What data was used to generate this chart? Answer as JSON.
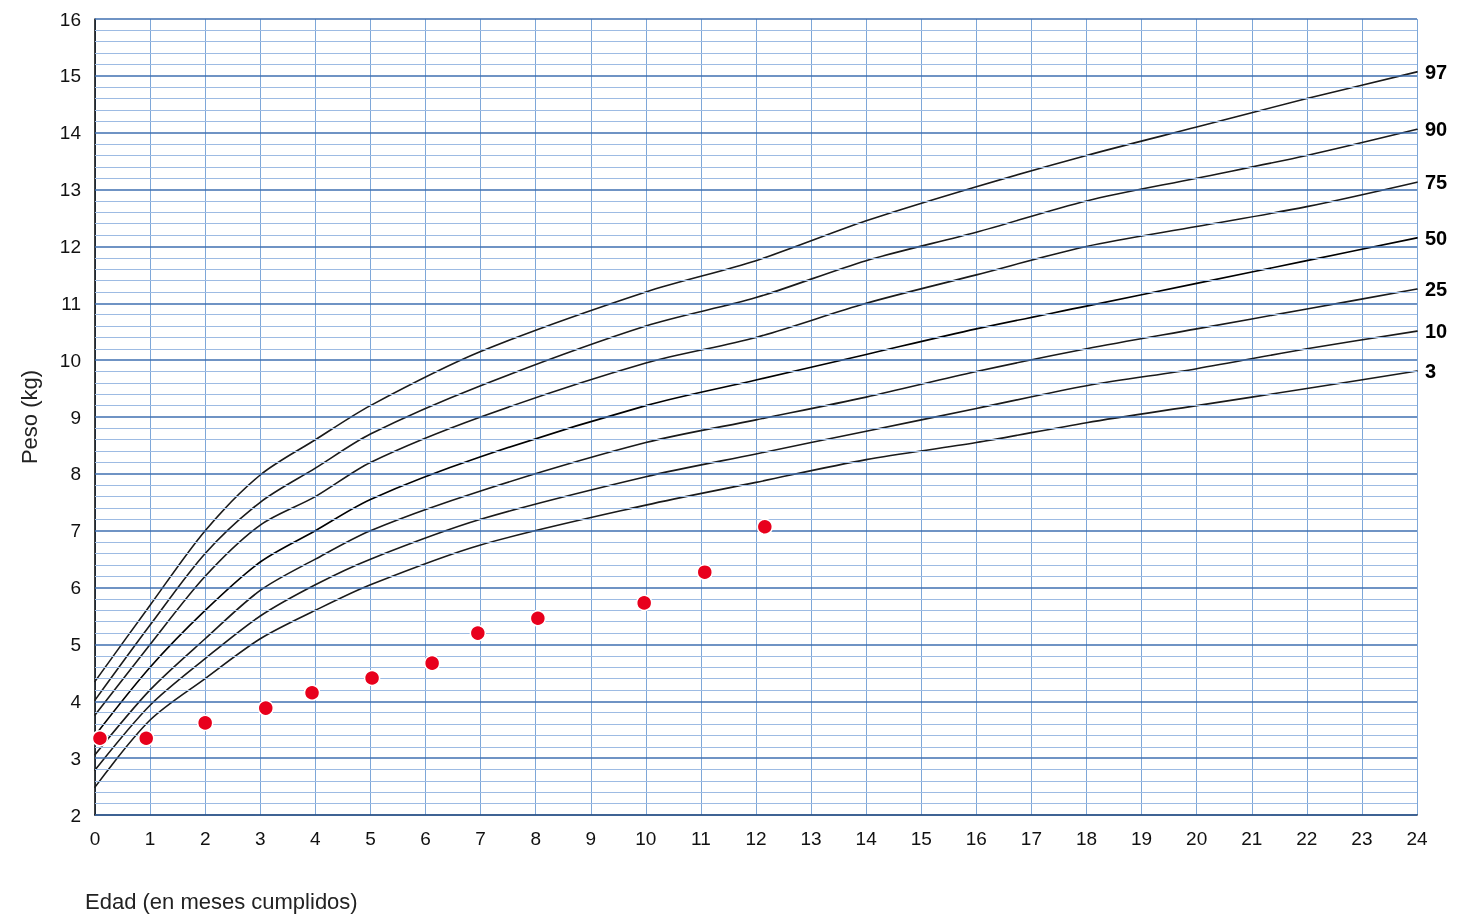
{
  "chart_data": {
    "type": "line",
    "xlabel": "Edad (en meses cumplidos)",
    "ylabel": "Peso (kg)",
    "xlim": [
      0,
      24
    ],
    "ylim": [
      2,
      16
    ],
    "xticks": [
      0,
      1,
      2,
      3,
      4,
      5,
      6,
      7,
      8,
      9,
      10,
      11,
      12,
      13,
      14,
      15,
      16,
      17,
      18,
      19,
      20,
      21,
      22,
      23,
      24
    ],
    "yticks": [
      2,
      {
        "value": 2.2,
        "label": null
      },
      {
        "value": 2.4,
        "label": null
      },
      {
        "value": 2.6,
        "label": null
      },
      {
        "value": 2.8,
        "label": null
      },
      3,
      {
        "value": 3.2,
        "label": null
      },
      {
        "value": 3.4,
        "label": null
      },
      {
        "value": 3.6,
        "label": null
      },
      {
        "value": 3.8,
        "label": null
      },
      4,
      {
        "value": 4.2,
        "label": null
      },
      {
        "value": 4.4,
        "label": null
      },
      {
        "value": 4.6,
        "label": null
      },
      {
        "value": 4.8,
        "label": null
      },
      5,
      {
        "value": 5.2,
        "label": null
      },
      {
        "value": 5.4,
        "label": null
      },
      {
        "value": 5.6,
        "label": null
      },
      {
        "value": 5.8,
        "label": null
      },
      6,
      {
        "value": 6.2,
        "label": null
      },
      {
        "value": 6.4,
        "label": null
      },
      {
        "value": 6.6,
        "label": null
      },
      {
        "value": 6.8,
        "label": null
      },
      7,
      {
        "value": 7.2,
        "label": null
      },
      {
        "value": 7.4,
        "label": null
      },
      {
        "value": 7.6,
        "label": null
      },
      {
        "value": 7.8,
        "label": null
      },
      8,
      {
        "value": 8.2,
        "label": null
      },
      {
        "value": 8.4,
        "label": null
      },
      {
        "value": 8.6,
        "label": null
      },
      {
        "value": 8.8,
        "label": null
      },
      9,
      {
        "value": 9.2,
        "label": null
      },
      {
        "value": 9.4,
        "label": null
      },
      {
        "value": 9.6,
        "label": null
      },
      {
        "value": 9.8,
        "label": null
      },
      10,
      {
        "value": 10.2,
        "label": null
      },
      {
        "value": 10.4,
        "label": null
      },
      {
        "value": 10.6,
        "label": null
      },
      {
        "value": 10.8,
        "label": null
      },
      11,
      {
        "value": 11.2,
        "label": null
      },
      {
        "value": 11.4,
        "label": null
      },
      {
        "value": 11.6,
        "label": null
      },
      {
        "value": 11.8,
        "label": null
      },
      12,
      {
        "value": 12.2,
        "label": null
      },
      {
        "value": 12.4,
        "label": null
      },
      {
        "value": 12.6,
        "label": null
      },
      {
        "value": 12.8,
        "label": null
      },
      13,
      {
        "value": 13.2,
        "label": null
      },
      {
        "value": 13.4,
        "label": null
      },
      {
        "value": 13.6,
        "label": null
      },
      {
        "value": 13.8,
        "label": null
      },
      14,
      {
        "value": 14.2,
        "label": null
      },
      {
        "value": 14.4,
        "label": null
      },
      {
        "value": 14.6,
        "label": null
      },
      {
        "value": 14.8,
        "label": null
      },
      15,
      {
        "value": 15.2,
        "label": null
      },
      {
        "value": 15.4,
        "label": null
      },
      {
        "value": 15.6,
        "label": null
      },
      {
        "value": 15.8,
        "label": null
      },
      16
    ],
    "grid": true,
    "legend": false,
    "marker": "none",
    "line_style": "solid",
    "x": [
      0,
      1,
      2,
      3,
      4,
      5,
      7,
      10,
      12,
      14,
      16,
      18,
      20,
      22,
      24
    ],
    "series": [
      {
        "name": "97",
        "color": "#1a1a1a",
        "values": [
          4.35,
          5.69,
          7.0,
          7.98,
          8.6,
          9.2,
          10.15,
          11.2,
          11.75,
          12.45,
          13.05,
          13.6,
          14.1,
          14.6,
          15.07
        ]
      },
      {
        "name": "90",
        "color": "#1a1a1a",
        "values": [
          4.02,
          5.34,
          6.6,
          7.5,
          8.1,
          8.7,
          9.55,
          10.6,
          11.1,
          11.75,
          12.25,
          12.8,
          13.2,
          13.6,
          14.06
        ]
      },
      {
        "name": "75",
        "color": "#1a1a1a",
        "values": [
          3.76,
          5.0,
          6.2,
          7.1,
          7.6,
          8.2,
          9.0,
          9.95,
          10.4,
          11.0,
          11.5,
          12.0,
          12.35,
          12.7,
          13.13
        ]
      },
      {
        "name": "50",
        "color": "#000000",
        "values": [
          3.4,
          4.6,
          5.6,
          6.45,
          7.0,
          7.55,
          8.3,
          9.2,
          9.65,
          10.1,
          10.55,
          10.95,
          11.35,
          11.75,
          12.15
        ]
      },
      {
        "name": "25",
        "color": "#1a1a1a",
        "values": [
          3.06,
          4.2,
          5.1,
          5.95,
          6.5,
          7.0,
          7.7,
          8.55,
          8.95,
          9.35,
          9.8,
          10.2,
          10.55,
          10.9,
          11.25
        ]
      },
      {
        "name": "10",
        "color": "#1a1a1a",
        "values": [
          2.79,
          3.93,
          4.75,
          5.5,
          6.05,
          6.5,
          7.2,
          7.95,
          8.35,
          8.75,
          9.15,
          9.55,
          9.85,
          10.2,
          10.51
        ]
      },
      {
        "name": "3",
        "color": "#1a1a1a",
        "values": [
          2.49,
          3.67,
          4.4,
          5.1,
          5.6,
          6.05,
          6.75,
          7.45,
          7.85,
          8.25,
          8.55,
          8.9,
          9.2,
          9.5,
          9.81
        ]
      },
      {
        "type": "scatter",
        "marker": "circle",
        "color": "#e8001c",
        "x": [
          0.09,
          0.93,
          2.0,
          3.1,
          3.94,
          5.03,
          6.12,
          6.95,
          8.04,
          9.97,
          11.07,
          12.16
        ],
        "values": [
          3.35,
          3.35,
          3.62,
          3.88,
          4.15,
          4.41,
          4.67,
          5.2,
          5.46,
          5.73,
          6.27,
          7.07
        ]
      }
    ]
  }
}
